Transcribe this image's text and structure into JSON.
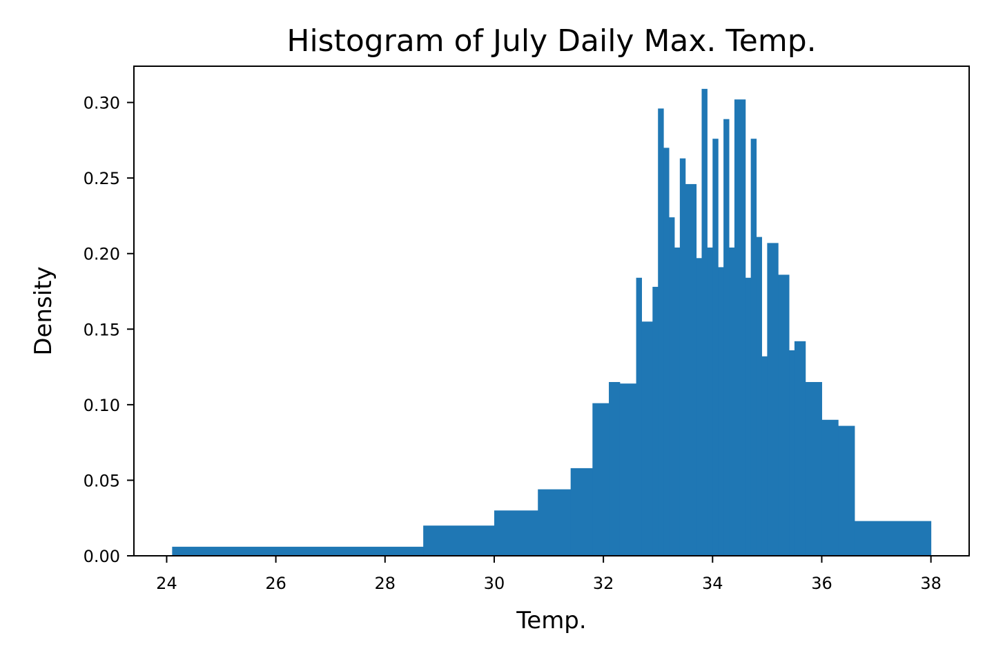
{
  "chart_data": {
    "type": "bar",
    "title": "Histogram of July Daily Max. Temp.",
    "xlabel": "Temp.",
    "ylabel": "Density",
    "xlim": [
      23.4,
      38.7
    ],
    "ylim": [
      0,
      0.324
    ],
    "xticks": [
      24,
      26,
      28,
      30,
      32,
      34,
      36,
      38
    ],
    "xtick_labels": [
      "24",
      "26",
      "28",
      "30",
      "32",
      "34",
      "36",
      "38"
    ],
    "yticks": [
      0.0,
      0.05,
      0.1,
      0.15,
      0.2,
      0.25,
      0.3
    ],
    "ytick_labels": [
      "0.00",
      "0.05",
      "0.10",
      "0.15",
      "0.20",
      "0.25",
      "0.30"
    ],
    "grid": false,
    "bar_color": "#1f77b4",
    "bins": [
      {
        "x0": 24.1,
        "x1": 28.7,
        "density": 0.006
      },
      {
        "x0": 28.7,
        "x1": 30.0,
        "density": 0.02
      },
      {
        "x0": 30.0,
        "x1": 30.8,
        "density": 0.03
      },
      {
        "x0": 30.8,
        "x1": 31.4,
        "density": 0.044
      },
      {
        "x0": 31.4,
        "x1": 31.8,
        "density": 0.058
      },
      {
        "x0": 31.8,
        "x1": 32.1,
        "density": 0.101
      },
      {
        "x0": 32.1,
        "x1": 32.3,
        "density": 0.115
      },
      {
        "x0": 32.3,
        "x1": 32.6,
        "density": 0.114
      },
      {
        "x0": 32.6,
        "x1": 32.7,
        "density": 0.184
      },
      {
        "x0": 32.7,
        "x1": 32.9,
        "density": 0.155
      },
      {
        "x0": 32.9,
        "x1": 33.0,
        "density": 0.178
      },
      {
        "x0": 33.0,
        "x1": 33.1,
        "density": 0.296
      },
      {
        "x0": 33.1,
        "x1": 33.2,
        "density": 0.27
      },
      {
        "x0": 33.2,
        "x1": 33.3,
        "density": 0.224
      },
      {
        "x0": 33.3,
        "x1": 33.4,
        "density": 0.204
      },
      {
        "x0": 33.4,
        "x1": 33.5,
        "density": 0.263
      },
      {
        "x0": 33.5,
        "x1": 33.7,
        "density": 0.246
      },
      {
        "x0": 33.7,
        "x1": 33.8,
        "density": 0.197
      },
      {
        "x0": 33.8,
        "x1": 33.9,
        "density": 0.309
      },
      {
        "x0": 33.9,
        "x1": 34.0,
        "density": 0.204
      },
      {
        "x0": 34.0,
        "x1": 34.1,
        "density": 0.276
      },
      {
        "x0": 34.1,
        "x1": 34.2,
        "density": 0.191
      },
      {
        "x0": 34.2,
        "x1": 34.3,
        "density": 0.289
      },
      {
        "x0": 34.3,
        "x1": 34.4,
        "density": 0.204
      },
      {
        "x0": 34.4,
        "x1": 34.6,
        "density": 0.302
      },
      {
        "x0": 34.6,
        "x1": 34.7,
        "density": 0.184
      },
      {
        "x0": 34.7,
        "x1": 34.8,
        "density": 0.276
      },
      {
        "x0": 34.8,
        "x1": 34.9,
        "density": 0.211
      },
      {
        "x0": 34.9,
        "x1": 35.0,
        "density": 0.132
      },
      {
        "x0": 35.0,
        "x1": 35.2,
        "density": 0.207
      },
      {
        "x0": 35.2,
        "x1": 35.4,
        "density": 0.186
      },
      {
        "x0": 35.4,
        "x1": 35.5,
        "density": 0.136
      },
      {
        "x0": 35.5,
        "x1": 35.7,
        "density": 0.142
      },
      {
        "x0": 35.7,
        "x1": 36.0,
        "density": 0.115
      },
      {
        "x0": 36.0,
        "x1": 36.3,
        "density": 0.09
      },
      {
        "x0": 36.3,
        "x1": 36.6,
        "density": 0.086
      },
      {
        "x0": 36.6,
        "x1": 38.0,
        "density": 0.023
      }
    ]
  }
}
